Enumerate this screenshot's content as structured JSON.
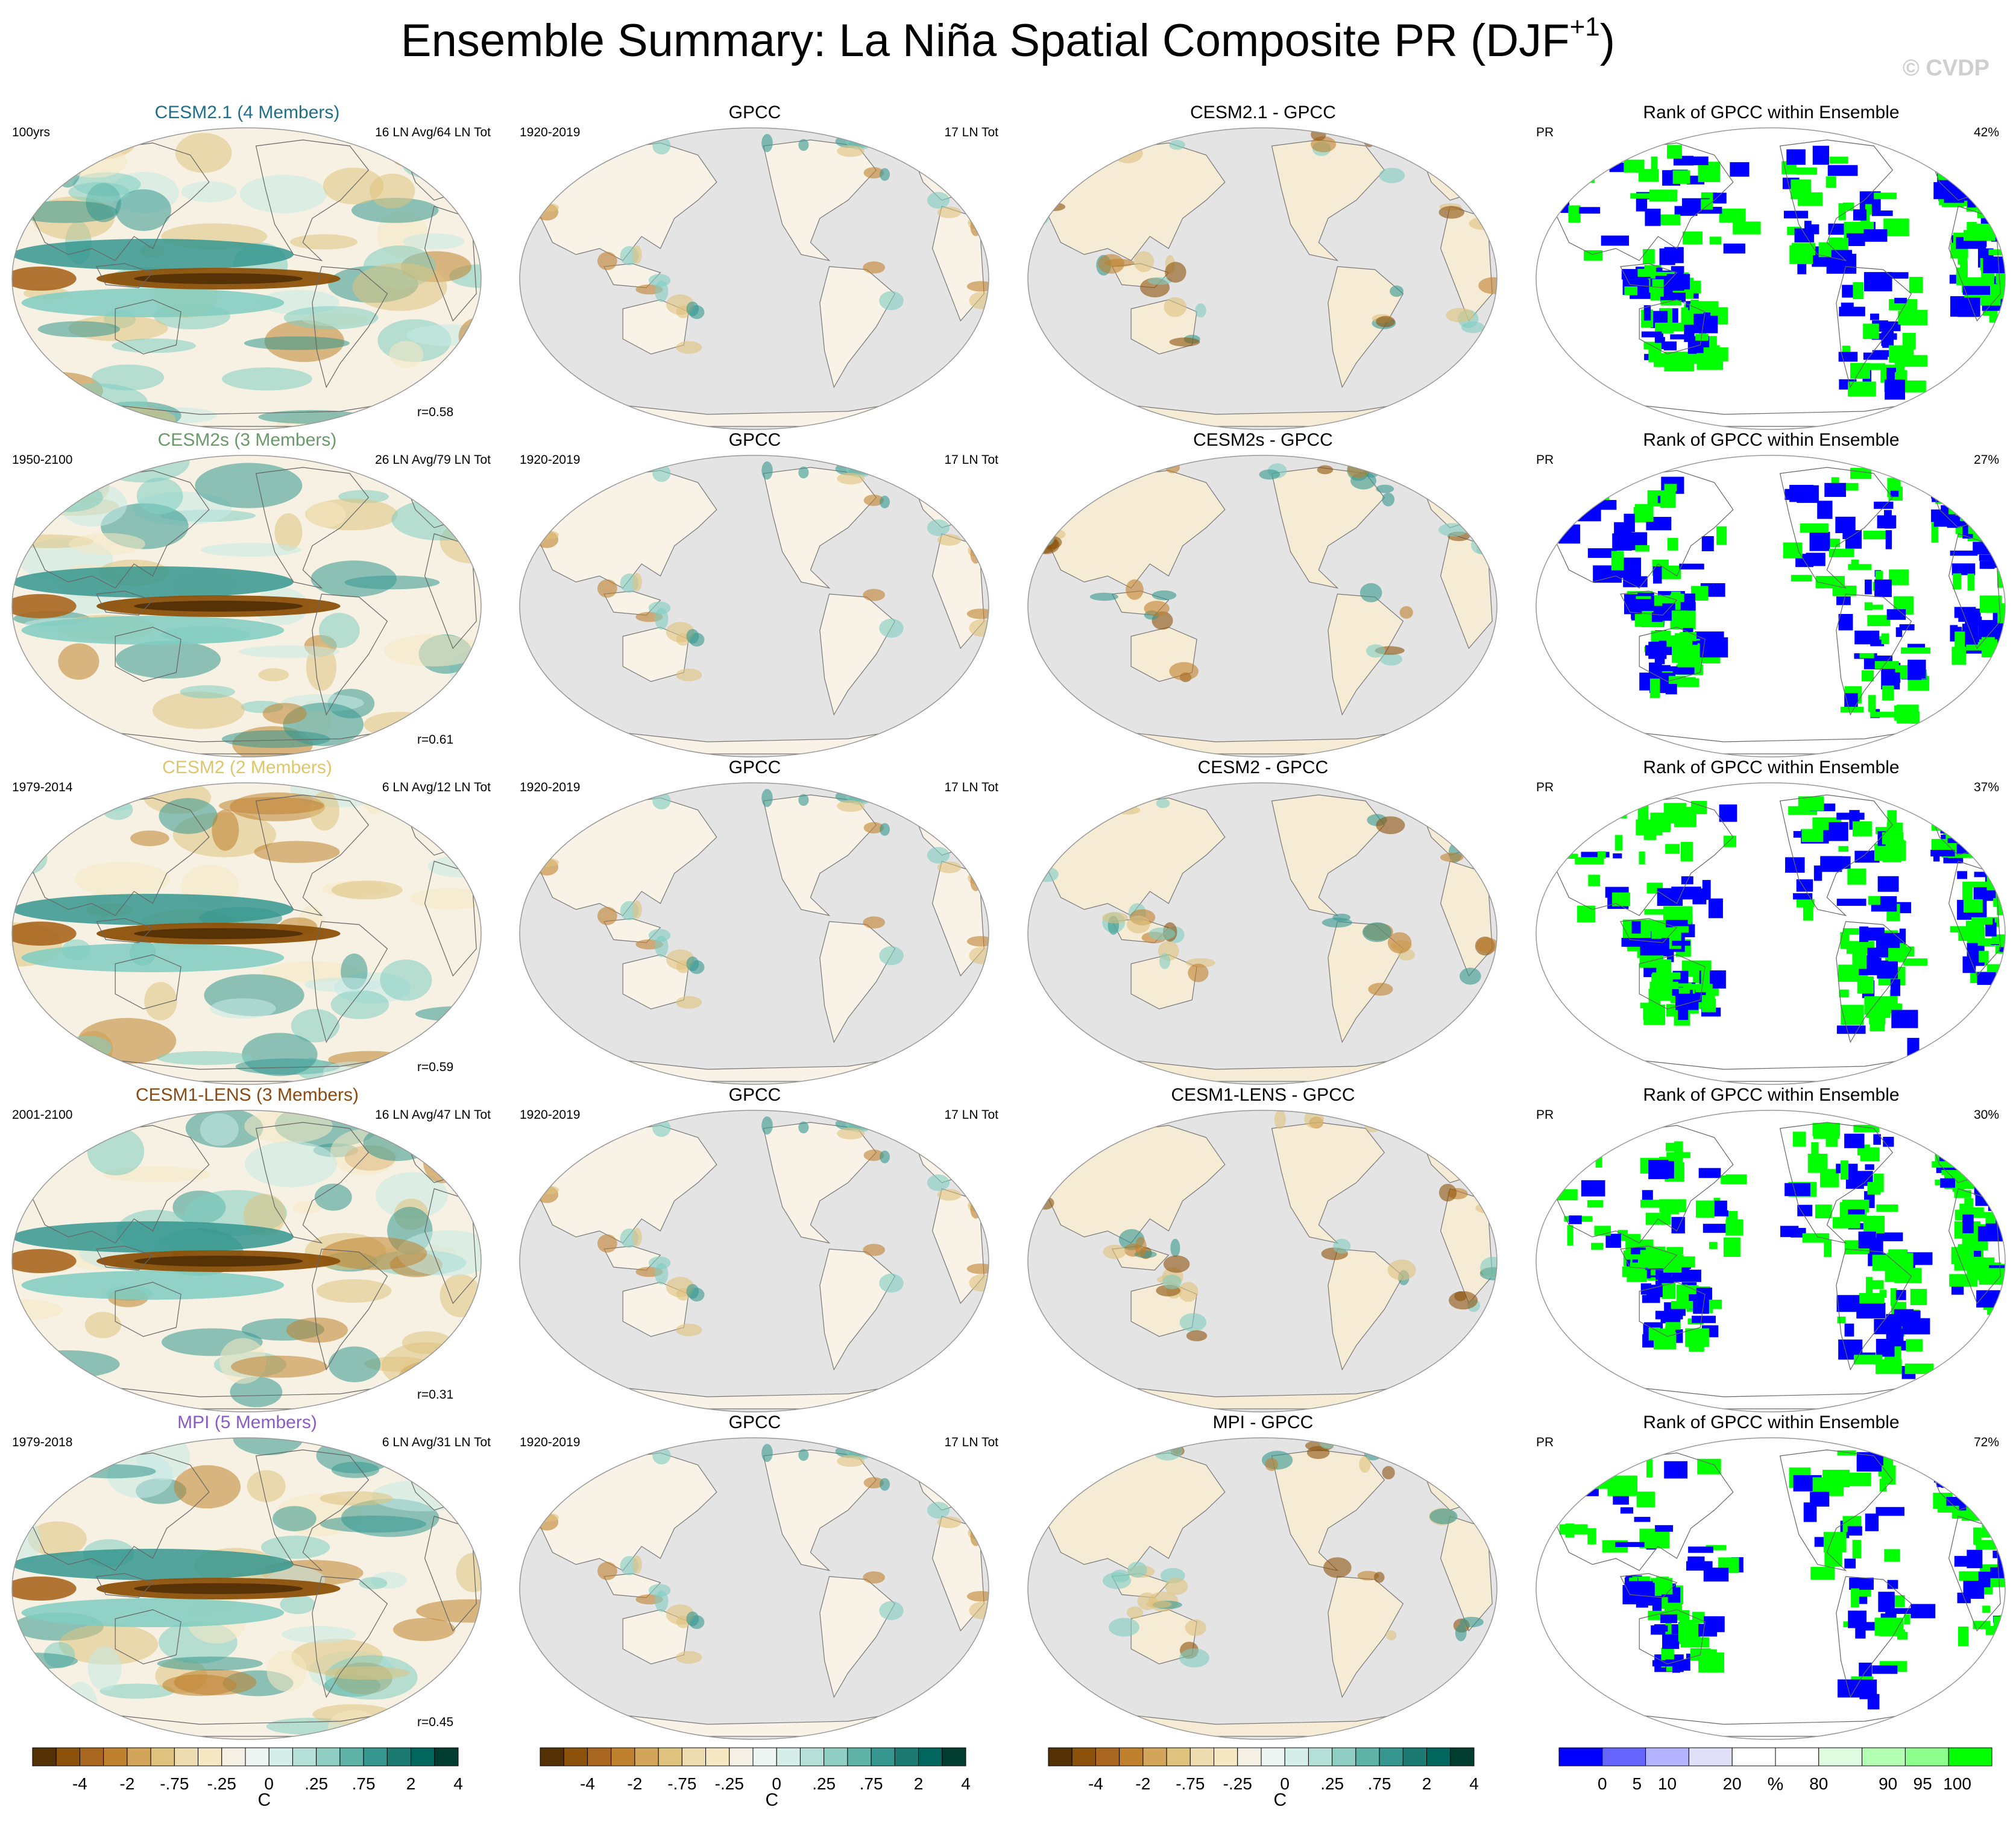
{
  "title": {
    "main": "Ensemble Summary: La Niña Spatial Composite PR (DJF",
    "sup": "+1",
    "close": ")"
  },
  "watermark": "© CVDP",
  "columns": [
    "model",
    "obs",
    "diff",
    "rank"
  ],
  "rows": [
    {
      "model": "CESM2.1 (4 Members)",
      "model_color": "#1f6f8b",
      "years": "100yrs",
      "avg": "16 LN Avg/64 LN Tot",
      "r": "r=0.58",
      "obs_title": "GPCC",
      "obs_years": "1920-2019",
      "obs_tot": "17 LN Tot",
      "diff_title": "CESM2.1 - GPCC",
      "rank_title": "Rank of GPCC within Ensemble",
      "rank_var": "PR",
      "rank_pct": "42%",
      "seed": 1
    },
    {
      "model": "CESM2s (3 Members)",
      "model_color": "#6a9a6a",
      "years": "1950-2100",
      "avg": "26 LN Avg/79 LN Tot",
      "r": "r=0.61",
      "obs_title": "GPCC",
      "obs_years": "1920-2019",
      "obs_tot": "17 LN Tot",
      "diff_title": "CESM2s - GPCC",
      "rank_title": "Rank of GPCC within Ensemble",
      "rank_var": "PR",
      "rank_pct": "27%",
      "seed": 2
    },
    {
      "model": "CESM2 (2 Members)",
      "model_color": "#e0c66a",
      "years": "1979-2014",
      "avg": "6 LN Avg/12 LN Tot",
      "r": "r=0.59",
      "obs_title": "GPCC",
      "obs_years": "1920-2019",
      "obs_tot": "17 LN Tot",
      "diff_title": "CESM2 - GPCC",
      "rank_title": "Rank of GPCC within Ensemble",
      "rank_var": "PR",
      "rank_pct": "37%",
      "seed": 3
    },
    {
      "model": "CESM1-LENS (3 Members)",
      "model_color": "#8b4a12",
      "years": "2001-2100",
      "avg": "16 LN Avg/47 LN Tot",
      "r": "r=0.31",
      "obs_title": "GPCC",
      "obs_years": "1920-2019",
      "obs_tot": "17 LN Tot",
      "diff_title": "CESM1-LENS - GPCC",
      "rank_title": "Rank of GPCC within Ensemble",
      "rank_var": "PR",
      "rank_pct": "30%",
      "seed": 4
    },
    {
      "model": "MPI (5 Members)",
      "model_color": "#8a5cc7",
      "years": "1979-2018",
      "avg": "6 LN Avg/31 LN Tot",
      "r": "r=0.45",
      "obs_title": "GPCC",
      "obs_years": "1920-2019",
      "obs_tot": "17 LN Tot",
      "diff_title": "MPI - GPCC",
      "rank_title": "Rank of GPCC within Ensemble",
      "rank_var": "PR",
      "rank_pct": "72%",
      "seed": 5
    }
  ],
  "colorbar_div": {
    "colors": [
      "#543005",
      "#8c510a",
      "#a9661e",
      "#bf812d",
      "#d3a55a",
      "#dfc27d",
      "#ecdcaf",
      "#f6e8c3",
      "#f5f0e4",
      "#eef6f4",
      "#d6eeea",
      "#b4e0d8",
      "#8fcfc3",
      "#5fb2a6",
      "#35978f",
      "#1b7b72",
      "#01665e",
      "#003c30"
    ],
    "labels": [
      "-4",
      "-2",
      "-.75",
      "-.25",
      "0",
      ".25",
      ".75",
      "2",
      "4"
    ],
    "label_pos": [
      2,
      4,
      6,
      8,
      10,
      12,
      14,
      16,
      18
    ],
    "unit": "C"
  },
  "colorbar_rank": {
    "colors": [
      "#0000ff",
      "#6666ff",
      "#b3b3ff",
      "#e0e0f8",
      "#ffffff",
      "#ffffff",
      "#e0fce0",
      "#b3ffb3",
      "#8cff8c",
      "#00ff00"
    ],
    "labels": [
      "0",
      "5",
      "10",
      "20",
      "%",
      "80",
      "90",
      "95",
      "100"
    ],
    "label_pos": [
      1,
      1.8,
      2.5,
      4,
      5,
      6,
      7.6,
      8.4,
      9.2
    ],
    "unit": "%"
  },
  "legend_geo_note": "land outlines schematic"
}
